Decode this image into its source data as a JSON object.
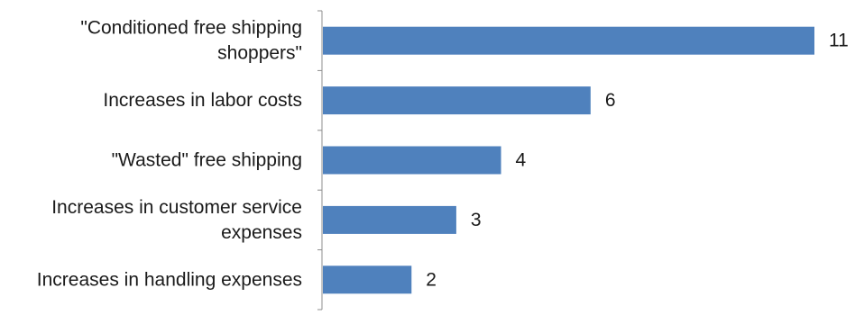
{
  "chart_data": {
    "type": "bar",
    "orientation": "horizontal",
    "categories": [
      "\"Conditioned free shipping shoppers\"",
      "Increases in labor costs",
      "\"Wasted\" free shipping",
      "Increases in customer service expenses",
      "Increases in handling expenses"
    ],
    "category_label_lines": [
      [
        "\"Conditioned free shipping",
        "shoppers\""
      ],
      [
        "Increases in labor costs"
      ],
      [
        "\"Wasted\" free shipping"
      ],
      [
        "Increases in customer service",
        "expenses"
      ],
      [
        "Increases in handling expenses"
      ]
    ],
    "values": [
      11,
      6,
      4,
      3,
      2
    ],
    "value_labels": [
      "11",
      "6",
      "4",
      "3",
      "2"
    ],
    "xlim": [
      0,
      11
    ],
    "grid": false,
    "legend": "none",
    "title": "",
    "xlabel": "",
    "ylabel": ""
  },
  "colors": {
    "bar": "#4f81bd",
    "axis": "#8c8c8c",
    "text": "#1a1a1a"
  }
}
